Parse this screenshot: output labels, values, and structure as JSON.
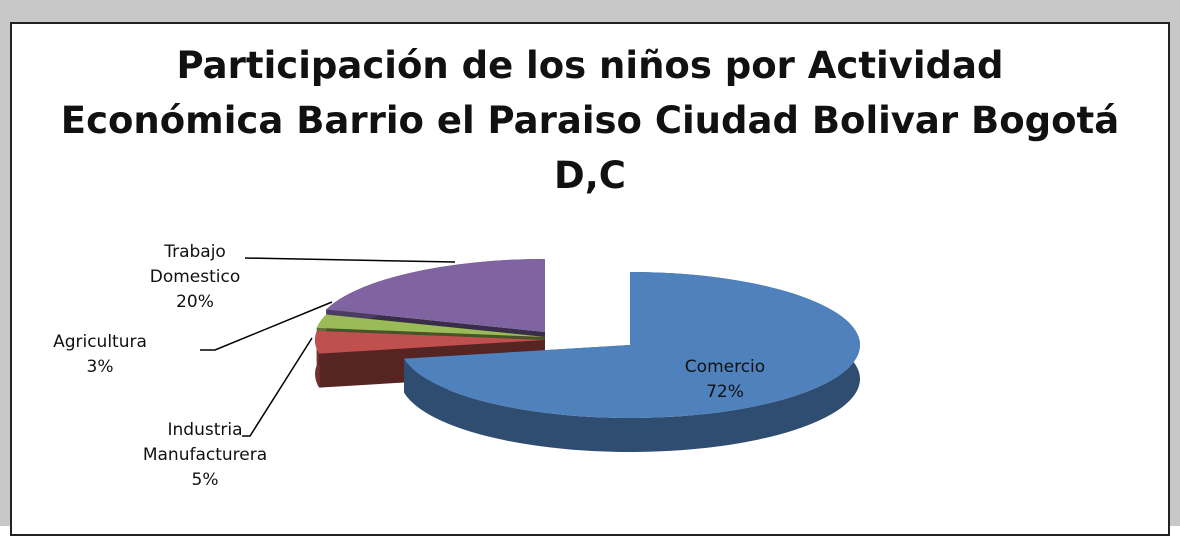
{
  "chart_data": {
    "type": "pie3d",
    "title": "Participación de los niños por Actividad Económica Barrio el Paraiso Ciudad Bolivar Bogotá D,C",
    "categories": [
      "Comercio",
      "Industria Manufacturera",
      "Agricultura",
      "Trabajo Domestico"
    ],
    "values": [
      72,
      5,
      3,
      20
    ],
    "value_labels": [
      "72%",
      "5%",
      "3%",
      "20%"
    ],
    "colors": [
      "#4f81bd",
      "#c0504d",
      "#9bbb59",
      "#8064a2"
    ]
  }
}
